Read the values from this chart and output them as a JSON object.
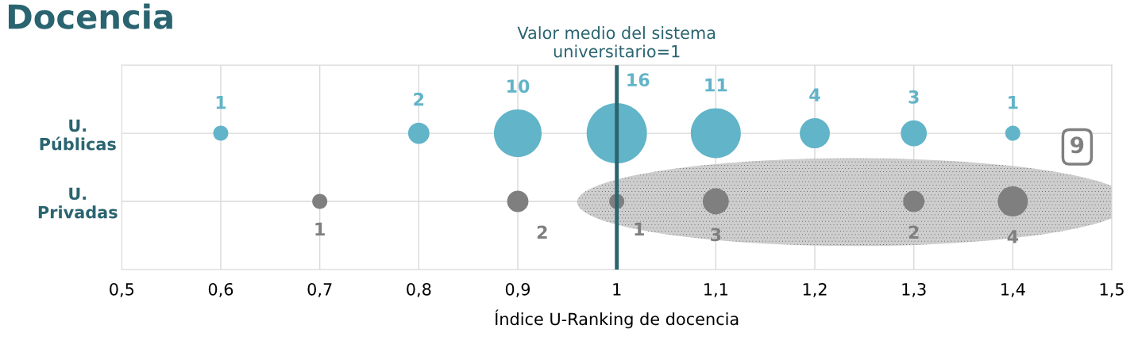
{
  "chart_data": {
    "type": "bubble",
    "title": "Docencia",
    "xlabel": "Índice U-Ranking de docencia",
    "orientation": "horizontal",
    "categories": [
      "U.\nPúblicas",
      "U.\nPrivadas"
    ],
    "xlim": [
      0.5,
      1.5
    ],
    "xticks": [
      {
        "value": 0.5,
        "label": "0,5"
      },
      {
        "value": 0.6,
        "label": "0,6"
      },
      {
        "value": 0.7,
        "label": "0,7"
      },
      {
        "value": 0.8,
        "label": "0,8"
      },
      {
        "value": 0.9,
        "label": "0,9"
      },
      1,
      {
        "value": 1.1,
        "label": "1,1"
      },
      {
        "value": 1.2,
        "label": "1,2"
      },
      {
        "value": 1.3,
        "label": "1,3"
      },
      {
        "value": 1.4,
        "label": "1,4"
      },
      {
        "value": 1.5,
        "label": "1,5"
      }
    ],
    "grid": true,
    "series": [
      {
        "colors": [
          "#62b4c8",
          "#7f7f7f"
        ],
        "values": [
          0.6,
          null
        ],
        "sizes": [
          1,
          null
        ],
        "value_labels": [
          "1",
          null
        ]
      },
      {
        "colors": [
          "#62b4c8",
          "#7f7f7f"
        ],
        "values": [
          null,
          0.7
        ],
        "sizes": [
          null,
          1
        ],
        "value_labels": [
          null,
          "1"
        ]
      },
      {
        "colors": [
          "#62b4c8",
          "#7f7f7f"
        ],
        "values": [
          0.8,
          null
        ],
        "sizes": [
          2,
          null
        ],
        "value_labels": [
          "2",
          null
        ]
      },
      {
        "colors": [
          "#62b4c8",
          "#7f7f7f"
        ],
        "values": [
          0.9,
          0.9
        ],
        "sizes": [
          10,
          2
        ],
        "value_labels": [
          "10",
          "2"
        ]
      },
      {
        "colors": [
          "#62b4c8",
          "#7f7f7f"
        ],
        "values": [
          1.0,
          1.0
        ],
        "sizes": [
          16,
          1
        ],
        "value_labels": [
          "16",
          "1"
        ]
      },
      {
        "colors": [
          "#62b4c8",
          "#7f7f7f"
        ],
        "values": [
          1.1,
          1.1
        ],
        "sizes": [
          11,
          3
        ],
        "value_labels": [
          "11",
          "3"
        ]
      },
      {
        "colors": [
          "#62b4c8",
          "#7f7f7f"
        ],
        "values": [
          1.2,
          null
        ],
        "sizes": [
          4,
          null
        ],
        "value_labels": [
          "4",
          null
        ]
      },
      {
        "colors": [
          "#62b4c8",
          "#7f7f7f"
        ],
        "values": [
          1.3,
          1.3
        ],
        "sizes": [
          3,
          2
        ],
        "value_labels": [
          "3",
          "2"
        ]
      },
      {
        "colors": [
          "#62b4c8",
          "#7f7f7f"
        ],
        "values": [
          1.4,
          1.4
        ],
        "sizes": [
          1,
          4
        ],
        "value_labels": [
          "1",
          "4"
        ]
      }
    ],
    "ref_lines": [
      {
        "axis": "x",
        "value": 1,
        "label": "Valor medio del sistema\nuniversitario=1",
        "color": "#2a6470"
      }
    ],
    "annotations": [
      "9"
    ]
  }
}
